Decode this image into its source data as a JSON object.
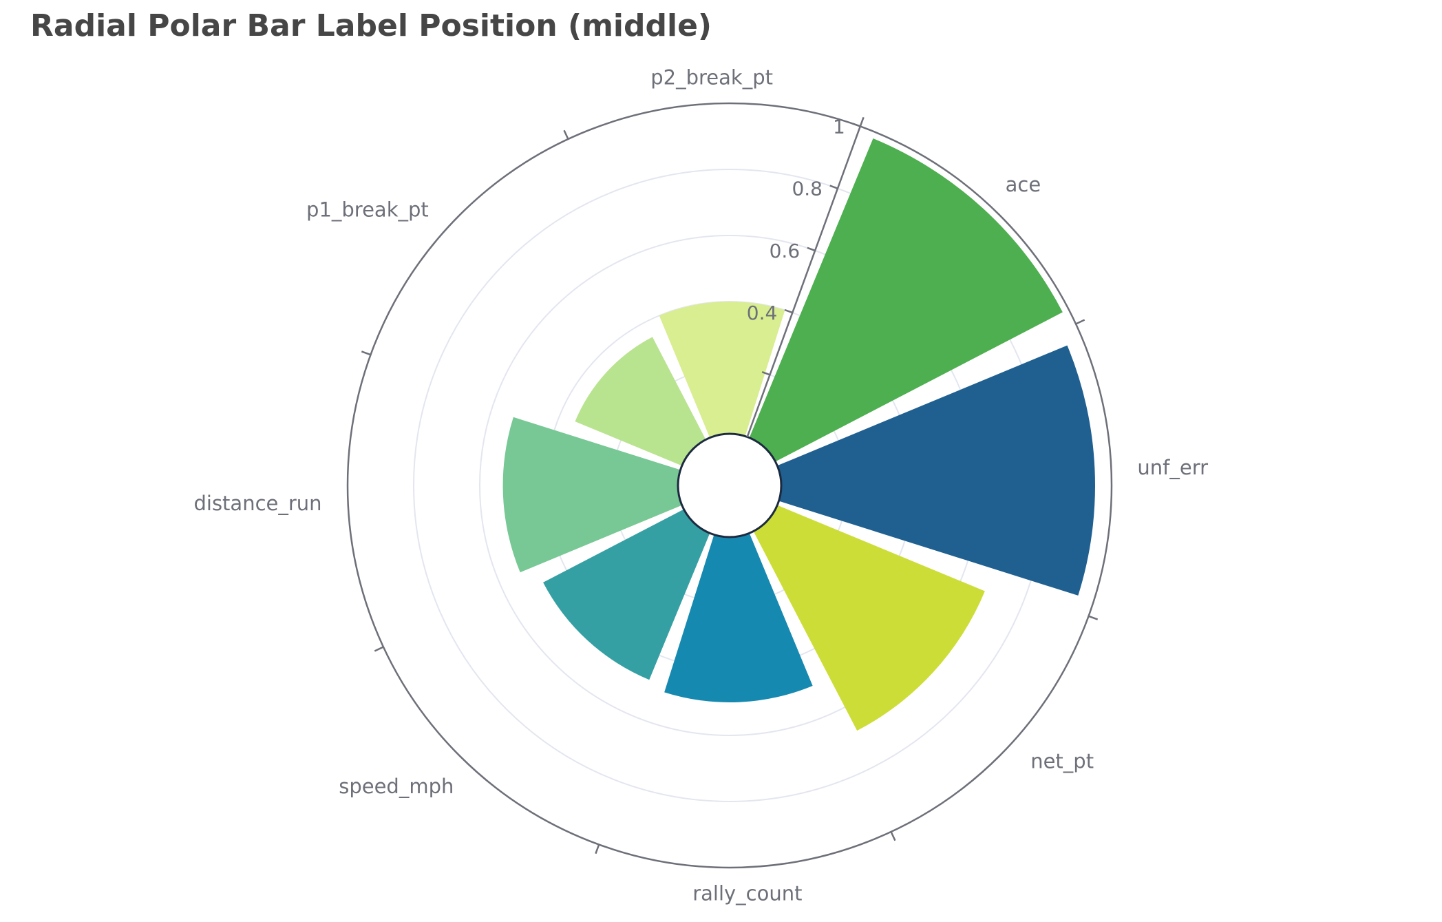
{
  "title": "Radial Polar Bar Label Position (middle)",
  "chart_data": {
    "type": "bar",
    "coordinate_system": "polar",
    "categories": [
      "ace",
      "unf_err",
      "net_pt",
      "rally_count",
      "speed_mph",
      "distance_run",
      "p1_break_pt",
      "p2_break_pt"
    ],
    "values": [
      0.98,
      0.95,
      0.68,
      0.5,
      0.48,
      0.53,
      0.35,
      0.4
    ],
    "colors": [
      "#4daf4f",
      "#1f6091",
      "#cddd37",
      "#1689b0",
      "#35a0a3",
      "#77c895",
      "#b8e38f",
      "#d9ed91"
    ],
    "radius_ticks": [
      "0.4",
      "0.6",
      "0.8",
      "1"
    ],
    "radius_range": [
      0,
      1
    ],
    "label_position": "middle",
    "grid": true
  }
}
